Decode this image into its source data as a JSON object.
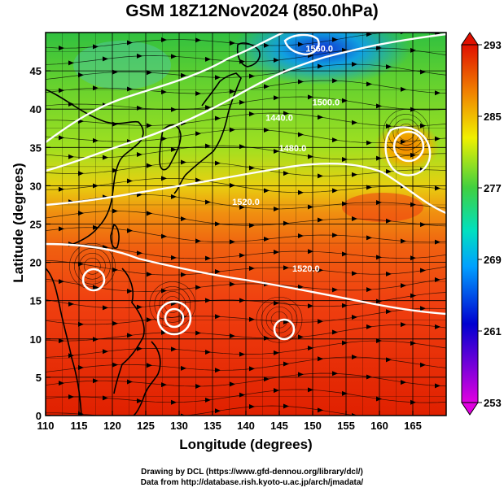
{
  "title": "GSM 18Z12Nov2024 (850.0hPa)",
  "xlabel": "Longitude (degrees)",
  "ylabel": "Latitude  (degrees)",
  "credits": [
    "Drawing by DCL (https://www.gfd-dennou.org/library/dcl/)",
    "Data from http://database.rish.kyoto-u.ac.jp/arch/jmadata/"
  ],
  "chart_data": {
    "type": "heatmap",
    "x_ticks": [
      "110",
      "115",
      "120",
      "125",
      "130",
      "135",
      "140",
      "145",
      "150",
      "155",
      "160",
      "165"
    ],
    "y_ticks": [
      "0",
      "5",
      "10",
      "15",
      "20",
      "25",
      "30",
      "35",
      "40",
      "45"
    ],
    "xlim": [
      110,
      170
    ],
    "ylim": [
      0,
      50
    ],
    "colorbar": {
      "ticks": [
        "293",
        "285",
        "277",
        "269",
        "261",
        "253"
      ],
      "range": [
        253,
        293
      ],
      "colors": [
        "#e000e0",
        "#0000d0",
        "#00a0ff",
        "#00e0c0",
        "#40d040",
        "#f0f000",
        "#f08000",
        "#e01000"
      ]
    },
    "contours": [
      {
        "label": "1560.0",
        "lon": 151,
        "lat": 47.5
      },
      {
        "label": "1500.0",
        "lon": 152,
        "lat": 40.5
      },
      {
        "label": "1440.0",
        "lon": 145,
        "lat": 38.5
      },
      {
        "label": "1480.0",
        "lon": 147,
        "lat": 34.5
      },
      {
        "label": "1520.0",
        "lon": 140,
        "lat": 27.5
      },
      {
        "label": "1520.0",
        "lon": 149,
        "lat": 18.8
      }
    ],
    "vortices": [
      {
        "lon": 117,
        "lat": 19.5
      },
      {
        "lon": 129,
        "lat": 14.5
      },
      {
        "lon": 145,
        "lat": 12.5
      },
      {
        "lon": 164,
        "lat": 37
      }
    ]
  }
}
